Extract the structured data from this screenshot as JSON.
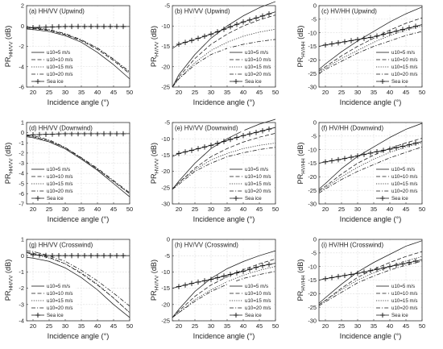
{
  "chart_data": [
    {
      "panel_label": "(a) HH/VV (Upwind)",
      "type": "line",
      "xlabel": "Incidence angle (°)",
      "ylabel_main": "PR",
      "ylabel_sub": "HH/VV",
      "ylabel_unit": "(dB)",
      "xlim": [
        18,
        50
      ],
      "xticks": [
        "20",
        "25",
        "30",
        "35",
        "40",
        "45",
        "50"
      ],
      "ylim": [
        -6,
        2
      ],
      "yticks": [
        "-6",
        "-4",
        "-2",
        "0",
        "2"
      ],
      "grid": true,
      "legend_position": "lower-left",
      "x": [
        18,
        20,
        25,
        30,
        35,
        40,
        45,
        50
      ],
      "series": [
        {
          "name": "u10=5 m/s",
          "style": "solid",
          "values": [
            -0.3,
            -0.35,
            -0.55,
            -0.95,
            -1.6,
            -2.6,
            -3.8,
            -5.2
          ]
        },
        {
          "name": "u10=10 m/s",
          "style": "dashed",
          "values": [
            -0.2,
            -0.25,
            -0.45,
            -0.85,
            -1.45,
            -2.3,
            -3.4,
            -4.7
          ]
        },
        {
          "name": "u10=15 m/s",
          "style": "dotted",
          "values": [
            -0.15,
            -0.2,
            -0.4,
            -0.8,
            -1.4,
            -2.2,
            -3.3,
            -4.6
          ]
        },
        {
          "name": "u10=20 m/s",
          "style": "dashdot",
          "values": [
            -0.1,
            -0.15,
            -0.35,
            -0.75,
            -1.35,
            -2.15,
            -3.25,
            -4.5
          ]
        },
        {
          "name": "Sea ice",
          "style": "plus",
          "values": [
            -0.25,
            -0.15,
            -0.1,
            -0.05,
            -0.05,
            -0.05,
            -0.05,
            -0.05
          ]
        }
      ]
    },
    {
      "panel_label": "(b) HV/VV (Upwind)",
      "type": "line",
      "xlabel": "Incidence angle (°)",
      "ylabel_main": "PR",
      "ylabel_sub": "HV/VV",
      "ylabel_unit": "(dB)",
      "xlim": [
        18,
        50
      ],
      "xticks": [
        "20",
        "25",
        "30",
        "35",
        "40",
        "45",
        "50"
      ],
      "ylim": [
        -25,
        -5
      ],
      "yticks": [
        "-25",
        "-20",
        "-15",
        "-10",
        "-5"
      ],
      "grid": true,
      "legend_position": "lower-right",
      "x": [
        18,
        20,
        25,
        30,
        35,
        40,
        45,
        50
      ],
      "series": [
        {
          "name": "u10=5 m/s",
          "style": "solid",
          "values": [
            -25,
            -22,
            -17,
            -13,
            -10,
            -7.5,
            -5.5,
            -4
          ]
        },
        {
          "name": "u10=10 m/s",
          "style": "dashed",
          "values": [
            -25,
            -22.5,
            -18,
            -14.5,
            -12,
            -10,
            -8.5,
            -7.3
          ]
        },
        {
          "name": "u10=15 m/s",
          "style": "dotted",
          "values": [
            -25,
            -23,
            -19,
            -16,
            -14,
            -12.5,
            -11.5,
            -10.8
          ]
        },
        {
          "name": "u10=20 m/s",
          "style": "dashdot",
          "values": [
            -25,
            -23,
            -19.5,
            -17,
            -15.5,
            -14.5,
            -13.8,
            -13.3
          ]
        },
        {
          "name": "Sea ice",
          "style": "plus",
          "values": [
            -15.5,
            -14.5,
            -13.3,
            -12,
            -10.5,
            -9,
            -7.8,
            -6.5
          ]
        }
      ]
    },
    {
      "panel_label": "(c) HV/HH (Upwind)",
      "type": "line",
      "xlabel": "Incidence angle (°)",
      "ylabel_main": "PR",
      "ylabel_sub": "HV/HH",
      "ylabel_unit": "(dB)",
      "xlim": [
        18,
        50
      ],
      "xticks": [
        "20",
        "25",
        "30",
        "35",
        "40",
        "45",
        "50"
      ],
      "ylim": [
        -30,
        0
      ],
      "yticks": [
        "-30",
        "-25",
        "-20",
        "-15",
        "-10",
        "-5",
        "0"
      ],
      "grid": true,
      "legend_position": "lower-right",
      "x": [
        18,
        20,
        25,
        30,
        35,
        40,
        45,
        50
      ],
      "series": [
        {
          "name": "u10=5 m/s",
          "style": "solid",
          "values": [
            -23.5,
            -21.5,
            -17,
            -13,
            -9.5,
            -6,
            -3,
            -0.5
          ]
        },
        {
          "name": "u10=10 m/s",
          "style": "dashed",
          "values": [
            -24,
            -22.5,
            -18.5,
            -15,
            -12,
            -9,
            -6.5,
            -4.5
          ]
        },
        {
          "name": "u10=15 m/s",
          "style": "dotted",
          "values": [
            -24.5,
            -23,
            -19.5,
            -16.5,
            -13.5,
            -11,
            -9,
            -7.5
          ]
        },
        {
          "name": "u10=20 m/s",
          "style": "dashdot",
          "values": [
            -25,
            -23.5,
            -20.5,
            -17.5,
            -15,
            -13,
            -11,
            -9.5
          ]
        },
        {
          "name": "Sea ice",
          "style": "plus",
          "values": [
            -15,
            -14.5,
            -13.5,
            -12.5,
            -11.5,
            -10,
            -8.5,
            -7
          ]
        }
      ]
    },
    {
      "panel_label": "(d) HH/VV (Downwind)",
      "type": "line",
      "xlabel": "Incidence angle (°)",
      "ylabel_main": "PR",
      "ylabel_sub": "HH/VV",
      "ylabel_unit": "(dB)",
      "xlim": [
        18,
        50
      ],
      "xticks": [
        "20",
        "25",
        "30",
        "35",
        "40",
        "45",
        "50"
      ],
      "ylim": [
        -7,
        1
      ],
      "yticks": [
        "-7",
        "-6",
        "-5",
        "-4",
        "-3",
        "-2",
        "-1",
        "0",
        "1"
      ],
      "grid": true,
      "legend_position": "lower-left",
      "x": [
        18,
        20,
        25,
        30,
        35,
        40,
        45,
        50
      ],
      "series": [
        {
          "name": "u10=5 m/s",
          "style": "solid",
          "values": [
            -0.4,
            -0.5,
            -0.9,
            -1.6,
            -2.6,
            -3.7,
            -5,
            -6.3
          ]
        },
        {
          "name": "u10=10 m/s",
          "style": "dashed",
          "values": [
            -0.3,
            -0.4,
            -0.8,
            -1.5,
            -2.5,
            -3.6,
            -4.8,
            -6
          ]
        },
        {
          "name": "u10=15 m/s",
          "style": "dotted",
          "values": [
            -0.3,
            -0.4,
            -0.8,
            -1.5,
            -2.5,
            -3.6,
            -4.8,
            -6
          ]
        },
        {
          "name": "u10=20 m/s",
          "style": "dashdot",
          "values": [
            -0.2,
            -0.3,
            -0.7,
            -1.45,
            -2.45,
            -3.5,
            -4.7,
            -5.9
          ]
        },
        {
          "name": "Sea ice",
          "style": "plus",
          "values": [
            -0.3,
            -0.2,
            -0.15,
            -0.1,
            -0.1,
            -0.1,
            -0.1,
            -0.1
          ]
        }
      ]
    },
    {
      "panel_label": "(e) HV/VV (Downwind)",
      "type": "line",
      "xlabel": "Incidence angle (°)",
      "ylabel_main": "PR",
      "ylabel_sub": "HV/VV",
      "ylabel_unit": "(dB)",
      "xlim": [
        18,
        50
      ],
      "xticks": [
        "20",
        "25",
        "30",
        "35",
        "40",
        "45",
        "50"
      ],
      "ylim": [
        -30,
        -5
      ],
      "yticks": [
        "-30",
        "-25",
        "-20",
        "-15",
        "-10",
        "-5"
      ],
      "grid": true,
      "legend_position": "lower-right",
      "x": [
        18,
        20,
        25,
        30,
        35,
        40,
        45,
        50
      ],
      "series": [
        {
          "name": "u10=5 m/s",
          "style": "solid",
          "values": [
            -25.5,
            -23,
            -17.5,
            -13,
            -10,
            -7.5,
            -5.5,
            -4
          ]
        },
        {
          "name": "u10=10 m/s",
          "style": "dashed",
          "values": [
            -25.5,
            -23.5,
            -19,
            -15.5,
            -13,
            -11,
            -9.5,
            -8.3
          ]
        },
        {
          "name": "u10=15 m/s",
          "style": "dotted",
          "values": [
            -25.5,
            -23.5,
            -19.5,
            -16.5,
            -14.5,
            -13,
            -12,
            -11.3
          ]
        },
        {
          "name": "u10=20 m/s",
          "style": "dashdot",
          "values": [
            -25.5,
            -24,
            -20,
            -17.5,
            -15.5,
            -14.3,
            -13.3,
            -12.6
          ]
        },
        {
          "name": "Sea ice",
          "style": "plus",
          "values": [
            -15.5,
            -14.5,
            -13.3,
            -12,
            -10.5,
            -9,
            -7.8,
            -6.5
          ]
        }
      ]
    },
    {
      "panel_label": "(f) HV/HH (Downwind)",
      "type": "line",
      "xlabel": "Incidence angle (°)",
      "ylabel_main": "PR",
      "ylabel_sub": "HV/HH",
      "ylabel_unit": "(dB)",
      "xlim": [
        18,
        50
      ],
      "xticks": [
        "20",
        "25",
        "30",
        "35",
        "40",
        "45",
        "50"
      ],
      "ylim": [
        -30,
        0
      ],
      "yticks": [
        "-30",
        "-25",
        "-20",
        "-15",
        "-10",
        "-5",
        "0"
      ],
      "grid": true,
      "legend_position": "lower-right",
      "x": [
        18,
        20,
        25,
        30,
        35,
        40,
        45,
        50
      ],
      "series": [
        {
          "name": "u10=5 m/s",
          "style": "solid",
          "values": [
            -24.5,
            -22.5,
            -17,
            -12.5,
            -9,
            -5.5,
            -2.5,
            -0.3
          ]
        },
        {
          "name": "u10=10 m/s",
          "style": "dashed",
          "values": [
            -25,
            -23.5,
            -19,
            -15,
            -12,
            -9.5,
            -7.5,
            -5.8
          ]
        },
        {
          "name": "u10=15 m/s",
          "style": "dotted",
          "values": [
            -25.5,
            -24,
            -20,
            -16.5,
            -13.5,
            -11,
            -9,
            -7.5
          ]
        },
        {
          "name": "u10=20 m/s",
          "style": "dashdot",
          "values": [
            -26,
            -24.5,
            -21,
            -18,
            -15.5,
            -13,
            -11,
            -9
          ]
        },
        {
          "name": "Sea ice",
          "style": "plus",
          "values": [
            -15,
            -14.5,
            -13.5,
            -12.3,
            -11,
            -9.8,
            -8.5,
            -7
          ]
        }
      ]
    },
    {
      "panel_label": "(g) HH/VV (Crosswind)",
      "type": "line",
      "xlabel": "Incidence angle (°)",
      "ylabel_main": "PR",
      "ylabel_sub": "HH/VV",
      "ylabel_unit": "(dB)",
      "xlim": [
        18,
        50
      ],
      "xticks": [
        "20",
        "25",
        "30",
        "35",
        "40",
        "45",
        "50"
      ],
      "ylim": [
        -4,
        1
      ],
      "yticks": [
        "-4",
        "-3",
        "-2",
        "-1",
        "0",
        "1"
      ],
      "grid": true,
      "legend_position": "lower-left",
      "x": [
        18,
        20,
        25,
        30,
        35,
        40,
        45,
        50
      ],
      "series": [
        {
          "name": "u10=5 m/s",
          "style": "solid",
          "values": [
            -0.1,
            -0.15,
            -0.35,
            -0.75,
            -1.35,
            -2.1,
            -3,
            -3.8
          ]
        },
        {
          "name": "u10=10 m/s",
          "style": "dashed",
          "values": [
            0.2,
            0.15,
            -0.1,
            -0.5,
            -1.1,
            -1.8,
            -2.6,
            -3.5
          ]
        },
        {
          "name": "u10=15 m/s",
          "style": "dotted",
          "values": [
            0.2,
            0.1,
            -0.15,
            -0.5,
            -1.05,
            -1.75,
            -2.6,
            -3.5
          ]
        },
        {
          "name": "u10=20 m/s",
          "style": "dashdot",
          "values": [
            0.3,
            0.25,
            0.0,
            -0.35,
            -0.9,
            -1.55,
            -2.3,
            -3.1
          ]
        },
        {
          "name": "Sea ice",
          "style": "plus",
          "values": [
            0.2,
            0.05,
            0.0,
            0.0,
            0.0,
            0.0,
            0.0,
            0.0
          ]
        }
      ]
    },
    {
      "panel_label": "(h) HV/VV (Crosswind)",
      "type": "line",
      "xlabel": "Incidence angle (°)",
      "ylabel_main": "PR",
      "ylabel_sub": "HV/VV",
      "ylabel_unit": "(dB)",
      "xlim": [
        18,
        50
      ],
      "xticks": [
        "20",
        "25",
        "30",
        "35",
        "40",
        "45",
        "50"
      ],
      "ylim": [
        -25,
        0
      ],
      "yticks": [
        "-25",
        "-20",
        "-15",
        "-10",
        "-5",
        "0"
      ],
      "grid": true,
      "legend_position": "lower-right",
      "x": [
        18,
        20,
        25,
        30,
        35,
        40,
        45,
        50
      ],
      "series": [
        {
          "name": "u10=5 m/s",
          "style": "solid",
          "values": [
            -24,
            -21.5,
            -16,
            -12,
            -9,
            -6.8,
            -5,
            -3.5
          ]
        },
        {
          "name": "u10=10 m/s",
          "style": "dashed",
          "values": [
            -24,
            -22,
            -17.5,
            -14,
            -11.5,
            -9.3,
            -7.5,
            -6
          ]
        },
        {
          "name": "u10=15 m/s",
          "style": "dotted",
          "values": [
            -24,
            -22.5,
            -18.5,
            -15.5,
            -13,
            -11,
            -9.5,
            -8.3
          ]
        },
        {
          "name": "u10=20 m/s",
          "style": "dashdot",
          "values": [
            -24,
            -22.5,
            -19,
            -16,
            -13.8,
            -12,
            -10.8,
            -9.8
          ]
        },
        {
          "name": "Sea ice",
          "style": "plus",
          "values": [
            -15,
            -14.5,
            -13.3,
            -12.3,
            -11,
            -9.8,
            -8.3,
            -7.3
          ]
        }
      ]
    },
    {
      "panel_label": "(i) HV/HH (Crosswind)",
      "type": "line",
      "xlabel": "Incidence angle (°)",
      "ylabel_main": "PR",
      "ylabel_sub": "HV/HH",
      "ylabel_unit": "(dB)",
      "xlim": [
        18,
        50
      ],
      "xticks": [
        "20",
        "25",
        "30",
        "35",
        "40",
        "45",
        "50"
      ],
      "ylim": [
        -30,
        0
      ],
      "yticks": [
        "-30",
        "-25",
        "-20",
        "-15",
        "-10",
        "-5",
        "0"
      ],
      "grid": true,
      "legend_position": "lower-right",
      "x": [
        18,
        20,
        25,
        30,
        35,
        40,
        45,
        50
      ],
      "series": [
        {
          "name": "u10=5 m/s",
          "style": "solid",
          "values": [
            -23.5,
            -21.5,
            -16.5,
            -12,
            -8.5,
            -5.5,
            -2.5,
            -0.5
          ]
        },
        {
          "name": "u10=10 m/s",
          "style": "dashed",
          "values": [
            -24,
            -22.5,
            -18,
            -14,
            -11,
            -8.5,
            -6.3,
            -4.5
          ]
        },
        {
          "name": "u10=15 m/s",
          "style": "dotted",
          "values": [
            -24,
            -22.5,
            -18.5,
            -15,
            -12.3,
            -10,
            -8,
            -6.3
          ]
        },
        {
          "name": "u10=20 m/s",
          "style": "dashdot",
          "values": [
            -24.5,
            -23,
            -19.5,
            -16,
            -13.5,
            -11.3,
            -9.5,
            -8
          ]
        },
        {
          "name": "Sea ice",
          "style": "plus",
          "values": [
            -15,
            -14.5,
            -13.5,
            -12.5,
            -11.3,
            -10,
            -8.8,
            -7.5
          ]
        }
      ]
    }
  ]
}
